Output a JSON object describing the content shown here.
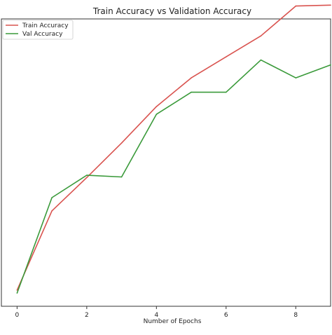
{
  "chart_data": {
    "type": "line",
    "title": "Train Accuracy vs Validation Accuracy",
    "xlabel": "Number of Epochs",
    "ylabel": "",
    "x": [
      0,
      1,
      2,
      3,
      4,
      5,
      6,
      7,
      8,
      9
    ],
    "x_ticks": [
      "0",
      "2",
      "4",
      "6",
      "8"
    ],
    "xlim": [
      -0.45,
      9
    ],
    "ylim": [
      0,
      100
    ],
    "grid": false,
    "legend_position": "top-left",
    "series": [
      {
        "name": "Train Accuracy",
        "color": "#d9534f",
        "values": [
          5.6,
          33.2,
          44.8,
          56.8,
          69.5,
          79.5,
          86.8,
          94.1,
          104.5,
          104.8
        ]
      },
      {
        "name": "Val Accuracy",
        "color": "#3a9a3a",
        "values": [
          4.6,
          37.8,
          45.6,
          45.0,
          66.8,
          74.5,
          74.5,
          85.7,
          79.5,
          84.0
        ]
      }
    ]
  }
}
